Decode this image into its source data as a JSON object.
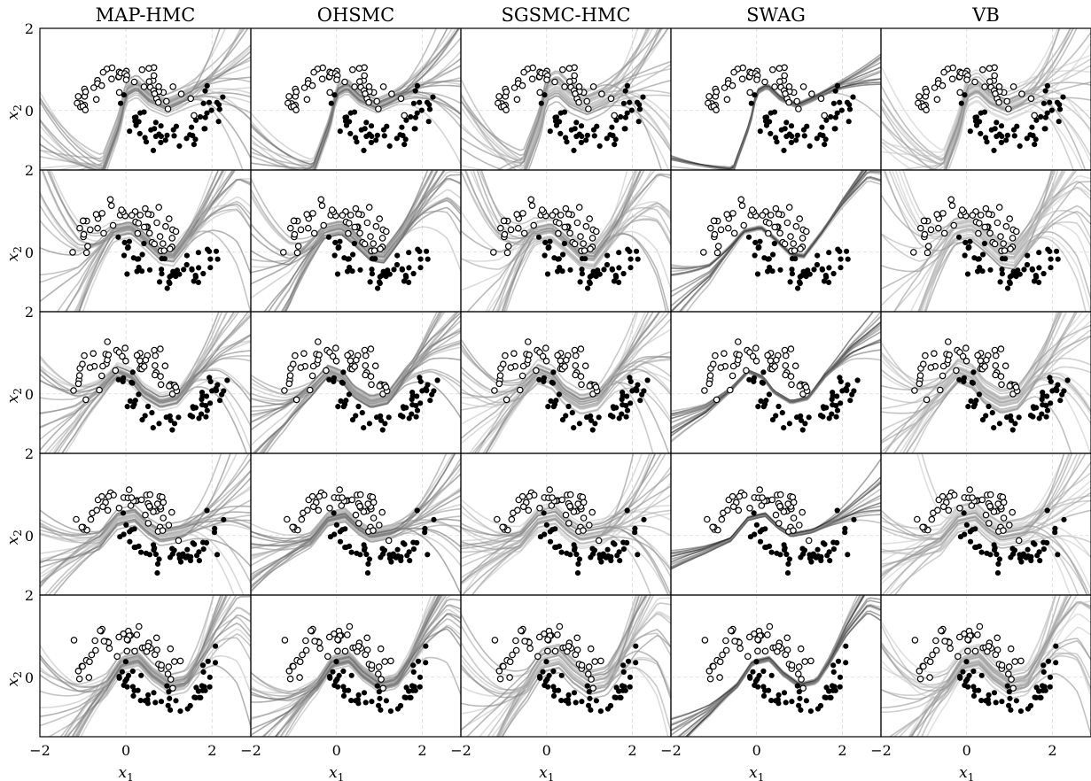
{
  "chart_data": {
    "type": "scatter",
    "layout": {
      "rows": 5,
      "cols": 5
    },
    "column_titles": [
      "MAP-HMC",
      "OHSMC",
      "SGSMC-HMC",
      "SWAG",
      "VB"
    ],
    "xlabel_base": "x",
    "xlabel_sub": "1",
    "ylabel_base": "x",
    "ylabel_sub": "2",
    "x_ticks": [
      "−2",
      "0",
      "2"
    ],
    "y_ticks": [
      "2",
      "0"
    ],
    "xlim": [
      -2,
      2.9
    ],
    "ylim": [
      -1.45,
      2.0
    ],
    "grid": true,
    "series": [
      {
        "marker": "open-circle",
        "class": 0
      },
      {
        "marker": "filled-circle",
        "class": 1
      }
    ],
    "row_seeds": [
      11,
      23,
      37,
      41,
      59
    ],
    "center_curves": [
      [
        [
          -2,
          -1.45
        ],
        [
          -0.55,
          -1.45
        ],
        [
          -0.15,
          -0.3
        ],
        [
          0,
          0.45
        ],
        [
          0.25,
          0.6
        ],
        [
          0.55,
          0.3
        ],
        [
          0.95,
          0.12
        ],
        [
          1.3,
          0.28
        ],
        [
          1.8,
          0.55
        ],
        [
          2.4,
          0.8
        ],
        [
          2.9,
          1.0
        ]
      ],
      [
        [
          -2,
          -1.1
        ],
        [
          -1.1,
          -0.5
        ],
        [
          -0.6,
          0.1
        ],
        [
          -0.3,
          0.5
        ],
        [
          0.1,
          0.6
        ],
        [
          0.4,
          0.35
        ],
        [
          0.8,
          -0.05
        ],
        [
          1.1,
          -0.1
        ],
        [
          1.5,
          0.45
        ],
        [
          2.0,
          1.2
        ],
        [
          2.6,
          2.0
        ]
      ],
      [
        [
          -2,
          -0.8
        ],
        [
          -1.2,
          -0.4
        ],
        [
          -0.6,
          0.1
        ],
        [
          -0.2,
          0.55
        ],
        [
          0.15,
          0.4
        ],
        [
          0.4,
          0.05
        ],
        [
          0.8,
          -0.2
        ],
        [
          1.2,
          -0.1
        ],
        [
          1.6,
          0.45
        ],
        [
          2.2,
          1.1
        ],
        [
          2.9,
          1.6
        ]
      ],
      [
        [
          -2,
          -0.6
        ],
        [
          -1.2,
          -0.35
        ],
        [
          -0.6,
          -0.1
        ],
        [
          -0.2,
          0.4
        ],
        [
          0.2,
          0.5
        ],
        [
          0.5,
          0.2
        ],
        [
          0.8,
          0.0
        ],
        [
          1.3,
          0.1
        ],
        [
          1.9,
          0.4
        ],
        [
          2.4,
          0.7
        ],
        [
          2.9,
          0.95
        ]
      ],
      [
        [
          -2,
          -1.45
        ],
        [
          -1.1,
          -0.8
        ],
        [
          -0.45,
          -0.2
        ],
        [
          -0.1,
          0.35
        ],
        [
          0.3,
          0.45
        ],
        [
          0.6,
          0.1
        ],
        [
          1.0,
          -0.2
        ],
        [
          1.4,
          -0.1
        ],
        [
          1.7,
          0.4
        ],
        [
          2.1,
          1.2
        ],
        [
          2.6,
          2.0
        ]
      ]
    ],
    "col_styles": [
      {
        "spread": 0.55,
        "dark": 0.55,
        "n": 24
      },
      {
        "spread": 0.4,
        "dark": 0.6,
        "n": 24
      },
      {
        "spread": 0.7,
        "dark": 0.5,
        "n": 26
      },
      {
        "spread": 0.12,
        "dark": 0.85,
        "n": 14
      },
      {
        "spread": 0.75,
        "dark": 0.45,
        "n": 26
      }
    ]
  }
}
